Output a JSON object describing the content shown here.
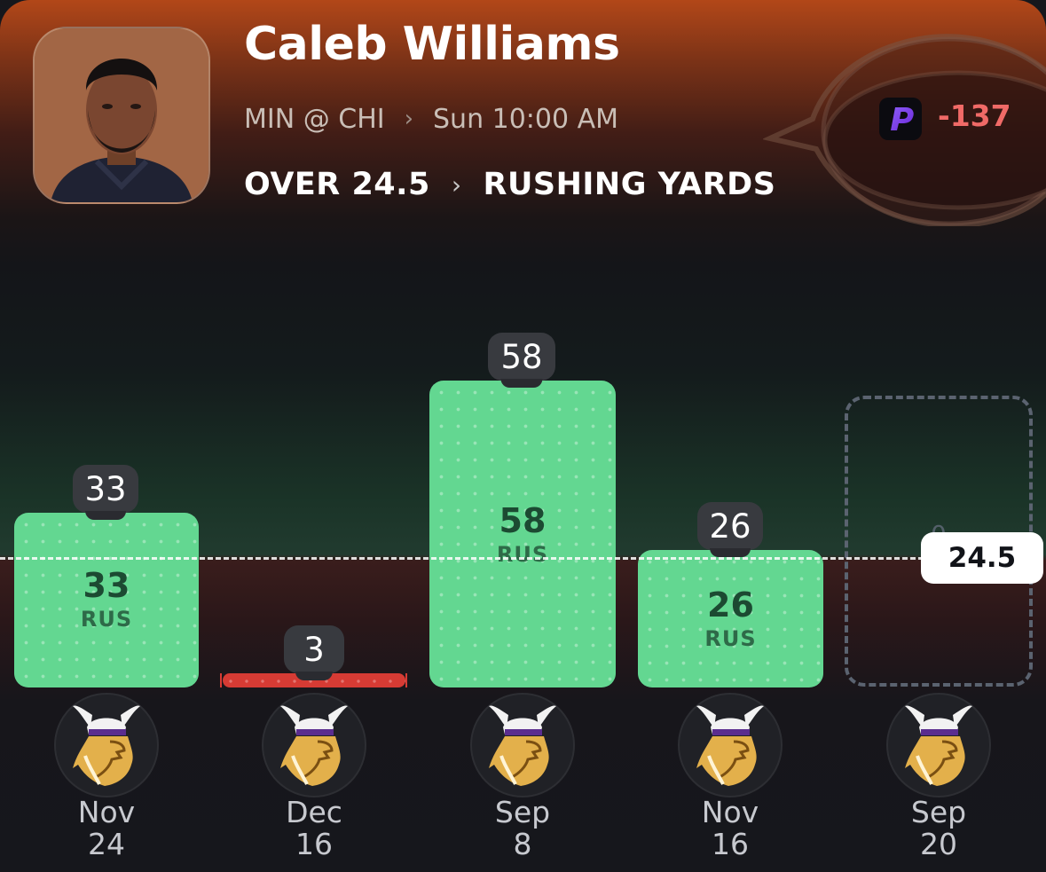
{
  "player": {
    "name": "Caleb Williams",
    "matchup": "MIN @ CHI",
    "game_time": "Sun 10:00 AM",
    "line_label": "OVER 24.5",
    "stat_label": "RUSHING YARDS"
  },
  "book": {
    "icon": "prizepicks-p-icon",
    "odds": "-137"
  },
  "chart_data": {
    "type": "bar",
    "threshold": 24.5,
    "threshold_label": "24.5",
    "ylim": [
      0,
      70
    ],
    "unit_label": "RUS",
    "categories": [
      "Nov 24",
      "Dec 16",
      "Sep 8",
      "Nov 16",
      "Sep 20"
    ],
    "values": [
      33,
      3,
      58,
      26,
      null
    ],
    "games": [
      {
        "month": "Nov",
        "day": "24",
        "value": 33,
        "value_label": "33",
        "opponent_icon": "vikings-logo-icon"
      },
      {
        "month": "Dec",
        "day": "16",
        "value": 3,
        "value_label": "3",
        "opponent_icon": "vikings-logo-icon"
      },
      {
        "month": "Sep",
        "day": "8",
        "value": 58,
        "value_label": "58",
        "opponent_icon": "vikings-logo-icon"
      },
      {
        "month": "Nov",
        "day": "16",
        "value": 26,
        "value_label": "26",
        "opponent_icon": "vikings-logo-icon"
      },
      {
        "month": "Sep",
        "day": "20",
        "value": null,
        "value_label": "",
        "opponent_icon": "vikings-logo-icon"
      }
    ],
    "colors": {
      "over": "#63d791",
      "under": "#d63b34",
      "pill": "#383a3f"
    }
  }
}
